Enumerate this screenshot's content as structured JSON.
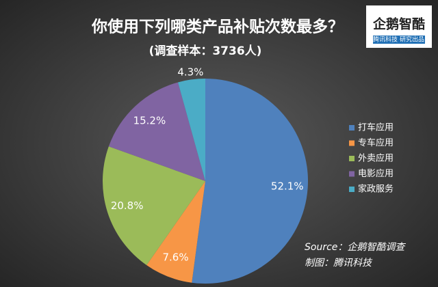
{
  "chart_data": {
    "type": "pie",
    "title": "你使用下列哪类产品补贴次数最多？",
    "subtitle": "(调查样本：3736人)",
    "categories": [
      "打车应用",
      "专车应用",
      "外卖应用",
      "电影应用",
      "家政服务"
    ],
    "values": [
      52.1,
      7.6,
      20.8,
      15.2,
      4.3
    ],
    "value_labels": [
      "52.1%",
      "7.6%",
      "20.8%",
      "15.2%",
      "4.3%"
    ],
    "colors": [
      "#4f81bd",
      "#f79646",
      "#9bbb59",
      "#8064a2",
      "#4bacc6"
    ],
    "legend": "right",
    "source": [
      "Source：企鹅智酷调查",
      "制图：腾讯科技"
    ]
  },
  "logo": {
    "name": "企鹅智酷",
    "tagline": [
      "腾讯科技",
      "研究出品"
    ]
  }
}
